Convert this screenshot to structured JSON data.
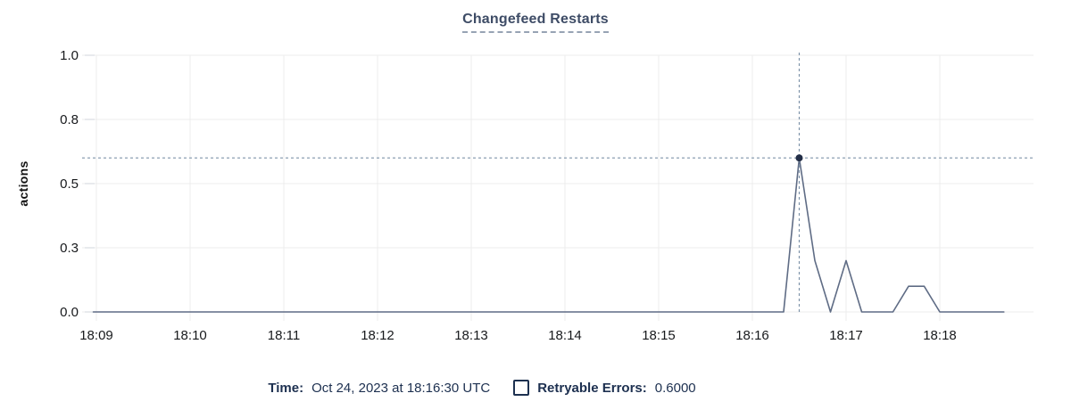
{
  "chart_data": {
    "type": "line",
    "title": "Changefeed Restarts",
    "ylabel": "actions",
    "xlabel": "",
    "ylim": [
      0,
      1
    ],
    "grid": true,
    "x_ticks": [
      "18:09",
      "18:10",
      "18:11",
      "18:12",
      "18:13",
      "18:14",
      "18:15",
      "18:16",
      "18:17",
      "18:18"
    ],
    "y_ticks": [
      {
        "label": "1.0",
        "value": 1.0
      },
      {
        "label": "0.8",
        "value": 0.75
      },
      {
        "label": "0.5",
        "value": 0.5
      },
      {
        "label": "0.3",
        "value": 0.25
      },
      {
        "label": "0.0",
        "value": 0.0
      }
    ],
    "series": [
      {
        "name": "Retryable Errors",
        "color": "#5f6c85",
        "points": [
          [
            "18:08:58",
            0
          ],
          [
            "18:16:20",
            0
          ],
          [
            "18:16:30",
            0.6
          ],
          [
            "18:16:40",
            0.2
          ],
          [
            "18:16:50",
            0
          ],
          [
            "18:17:00",
            0.2
          ],
          [
            "18:17:10",
            0
          ],
          [
            "18:17:30",
            0
          ],
          [
            "18:17:40",
            0.1
          ],
          [
            "18:17:50",
            0.1
          ],
          [
            "18:18:00",
            0
          ],
          [
            "18:18:41",
            0
          ]
        ]
      }
    ],
    "hover": {
      "time": "18:16:30",
      "value": 0.6,
      "dot_color": "#232e47",
      "crosshair_color": "#7f94aa"
    }
  },
  "legend": {
    "time_label": "Time:",
    "time_value": "Oct 24, 2023 at 18:16:30 UTC",
    "series_label": "Retryable Errors:",
    "series_value": "0.6000",
    "checkbox_checked": false
  },
  "colors": {
    "title": "#3e4c66",
    "grid": "#ececec",
    "grid_tick": "#d2d6db",
    "axis_text": "#17191c",
    "legend_text": "#1d3050"
  }
}
